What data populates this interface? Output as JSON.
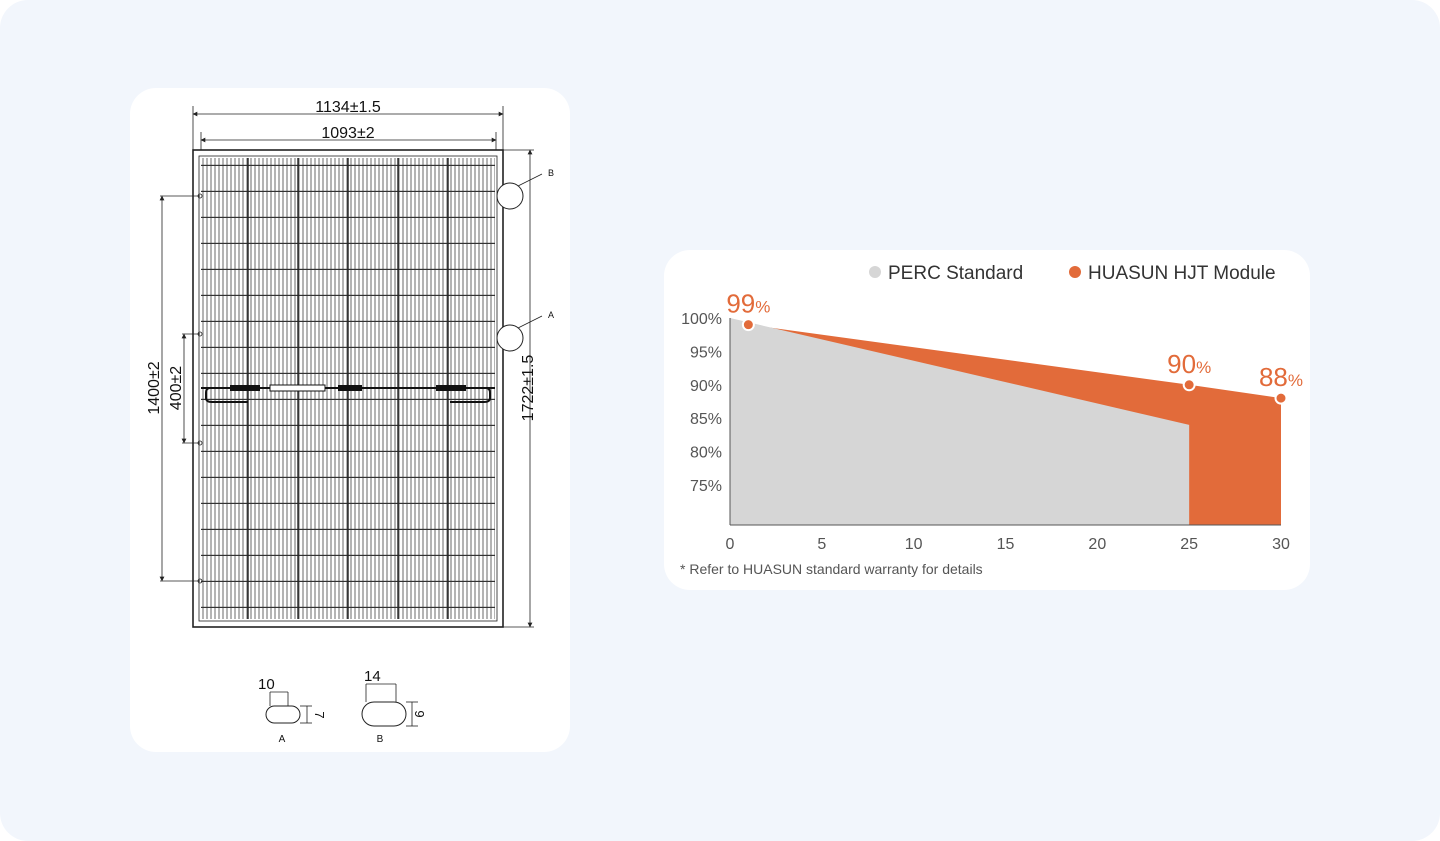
{
  "drawing": {
    "dim_outer_width": "1134±1.5",
    "dim_inner_width": "1093±2",
    "dim_mount_holes": "1400±2",
    "dim_ground_holes": "400±2",
    "dim_height": "1722±1.5",
    "callout_b": "B",
    "callout_a": "A",
    "detail_a": {
      "width": "10",
      "height": "7",
      "label": "A"
    },
    "detail_b": {
      "width": "14",
      "height": "9",
      "label": "B"
    }
  },
  "chart_data": {
    "type": "area",
    "legend_position": "top-right",
    "series": [
      {
        "name": "PERC Standard",
        "color": "#d6d6d6",
        "x": [
          0,
          25
        ],
        "y": [
          100,
          84
        ]
      },
      {
        "name": "HUASUN HJT Module",
        "color": "#e26b3a",
        "x": [
          0,
          1,
          25,
          30
        ],
        "y": [
          100,
          99,
          90,
          88
        ]
      }
    ],
    "xticks": [
      "0",
      "5",
      "10",
      "15",
      "20",
      "25",
      "30"
    ],
    "yticks": [
      "100%",
      "95%",
      "90%",
      "85%",
      "80%",
      "75%"
    ],
    "xlim": [
      0,
      30
    ],
    "ylim": [
      69,
      100
    ],
    "annotations": [
      {
        "x": 1,
        "y": 99,
        "value": "99",
        "unit": "%"
      },
      {
        "x": 25,
        "y": 90,
        "value": "90",
        "unit": "%"
      },
      {
        "x": 30,
        "y": 88,
        "value": "88",
        "unit": "%"
      }
    ],
    "footnote": "* Refer to HUASUN standard warranty for details"
  }
}
